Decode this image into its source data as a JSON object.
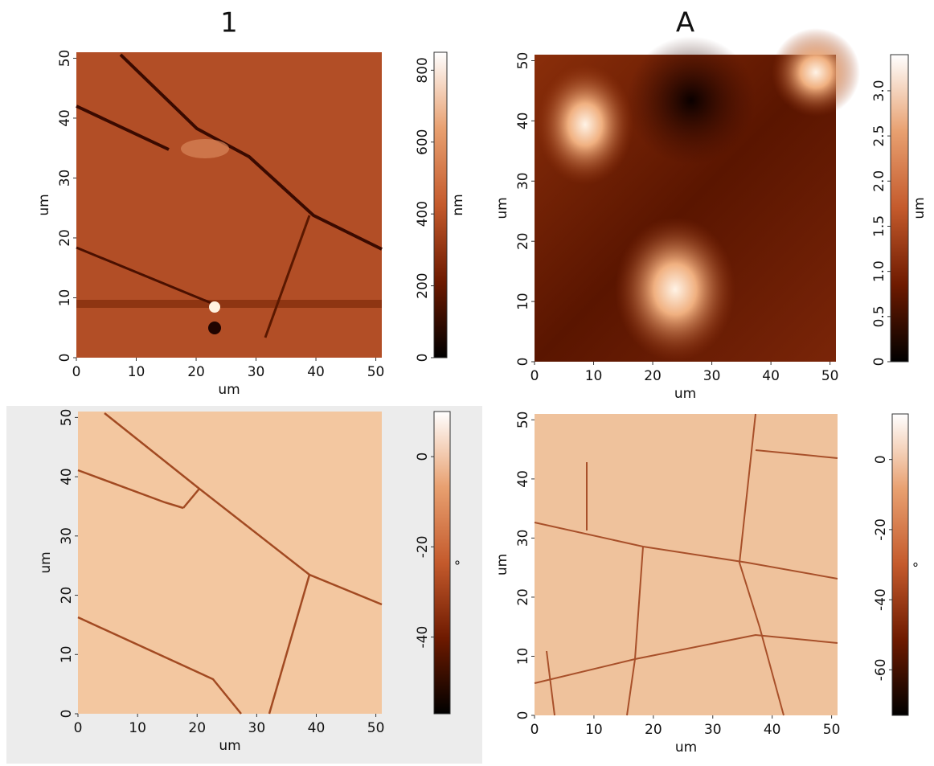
{
  "chart_data": [
    {
      "type": "heatmap",
      "title": "1",
      "xlabel": "um",
      "ylabel": "um",
      "xlim": [
        0,
        51
      ],
      "ylim": [
        0,
        51
      ],
      "xticks": [
        0,
        10,
        20,
        30,
        40,
        50
      ],
      "yticks": [
        0,
        10,
        20,
        30,
        40,
        50
      ],
      "clim": [
        0,
        850
      ],
      "cticks": [
        0,
        200,
        400,
        600,
        800
      ],
      "clabel": "nm",
      "colormap": [
        "#000000",
        "#6e1a00",
        "#c45a2c",
        "#e8a070",
        "#ffffff"
      ]
    },
    {
      "type": "heatmap",
      "title": "A",
      "xlabel": "um",
      "ylabel": "um",
      "xlim": [
        0,
        51
      ],
      "ylim": [
        0,
        51
      ],
      "xticks": [
        0,
        10,
        20,
        30,
        40,
        50
      ],
      "yticks": [
        0,
        10,
        20,
        30,
        40,
        50
      ],
      "clim": [
        0,
        3.4
      ],
      "cticks": [
        0,
        0.5,
        {
          "value": 1,
          "label": "1.0"
        },
        1.5,
        {
          "value": 2,
          "label": "2.0"
        },
        2.5,
        {
          "value": 3,
          "label": "3.0"
        }
      ],
      "clabel": "um",
      "colormap": [
        "#000000",
        "#6e1a00",
        "#c45a2c",
        "#e8a070",
        "#ffffff"
      ]
    },
    {
      "type": "heatmap",
      "xlabel": "um",
      "ylabel": "um",
      "xlim": [
        0,
        51
      ],
      "ylim": [
        0,
        51
      ],
      "xticks": [
        0,
        10,
        20,
        30,
        40,
        50
      ],
      "yticks": [
        0,
        10,
        20,
        30,
        40,
        50
      ],
      "clim": [
        -57,
        10
      ],
      "cticks": [
        -40,
        -20,
        0
      ],
      "clabel": "°",
      "colormap": [
        "#000000",
        "#6e1a00",
        "#c45a2c",
        "#e8a070",
        "#ffffff"
      ]
    },
    {
      "type": "heatmap",
      "xlabel": "um",
      "ylabel": "um",
      "xlim": [
        0,
        51
      ],
      "ylim": [
        0,
        51
      ],
      "xticks": [
        0,
        10,
        20,
        30,
        40,
        50
      ],
      "yticks": [
        0,
        10,
        20,
        30,
        40,
        50
      ],
      "clim": [
        -73,
        13
      ],
      "cticks": [
        -60,
        -40,
        -20,
        0
      ],
      "clabel": "°",
      "colormap": [
        "#000000",
        "#6e1a00",
        "#c45a2c",
        "#e8a070",
        "#ffffff"
      ]
    }
  ]
}
